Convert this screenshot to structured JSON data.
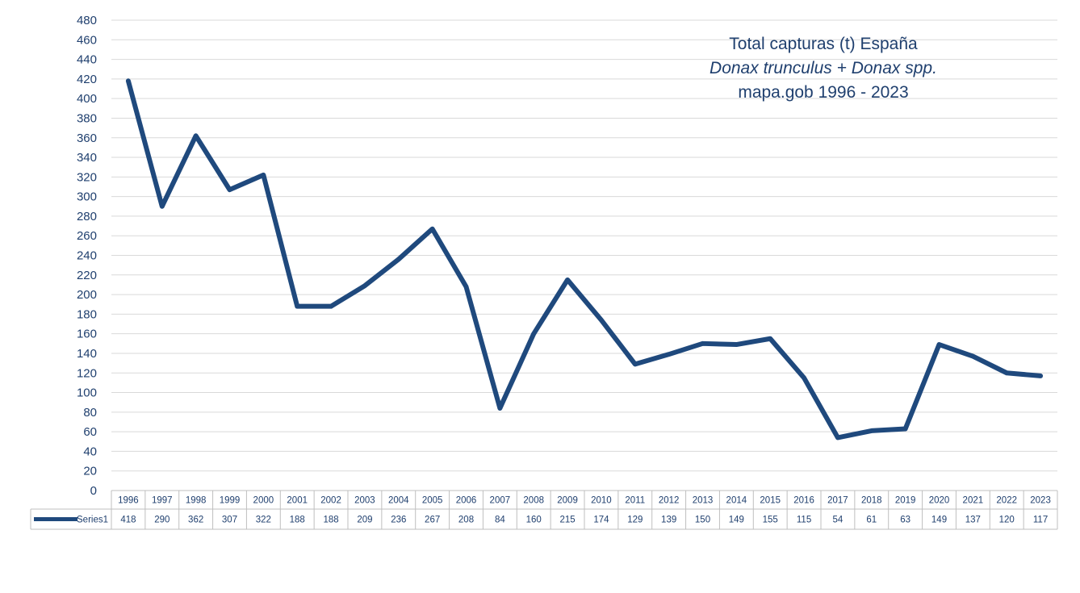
{
  "chart_data": {
    "type": "line",
    "title_lines": [
      "Total capturas (t) España",
      "Donax trunculus + Donax spp.",
      "mapa.gob  1996 - 2023"
    ],
    "categories": [
      "1996",
      "1997",
      "1998",
      "1999",
      "2000",
      "2001",
      "2002",
      "2003",
      "2004",
      "2005",
      "2006",
      "2007",
      "2008",
      "2009",
      "2010",
      "2011",
      "2012",
      "2013",
      "2014",
      "2015",
      "2016",
      "2017",
      "2018",
      "2019",
      "2020",
      "2021",
      "2022",
      "2023"
    ],
    "series": [
      {
        "name": "Series1",
        "values": [
          418,
          290,
          362,
          307,
          322,
          188,
          188,
          209,
          236,
          267,
          208,
          84,
          160,
          215,
          174,
          129,
          139,
          150,
          149,
          155,
          115,
          54,
          61,
          63,
          149,
          137,
          120,
          117
        ],
        "color": "#1f497d"
      }
    ],
    "ylim": [
      0,
      480
    ],
    "ytick_step": 20,
    "grid": true,
    "legend": "data-table",
    "xlabel": "",
    "ylabel": ""
  }
}
